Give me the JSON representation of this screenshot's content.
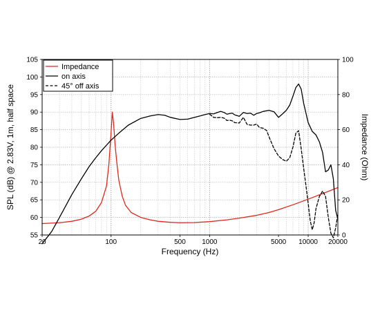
{
  "chart_data": {
    "type": "line",
    "xlabel": "Frequency (Hz)",
    "ylabel": "SPL (dB) @ 2.83V, 1m, half space",
    "y2label": "Impedance (Ohm)",
    "xscale": "log",
    "xlim": [
      20,
      20000
    ],
    "ylim": [
      55,
      105
    ],
    "y2lim": [
      0,
      100
    ],
    "grid": true,
    "legend_position": "top-left",
    "x_tick_labels": [
      "20",
      "100",
      "500",
      "1000",
      "5000",
      "10000",
      "20000"
    ],
    "x_ticks": [
      20,
      100,
      500,
      1000,
      5000,
      10000,
      20000
    ],
    "y_ticks": [
      55,
      60,
      65,
      70,
      75,
      80,
      85,
      90,
      95,
      100,
      105
    ],
    "y_tick_labels": [
      "55",
      "60",
      "65",
      "70",
      "75",
      "80",
      "85",
      "90",
      "95",
      "100",
      "105"
    ],
    "y2_ticks": [
      0,
      20,
      40,
      60,
      80,
      100
    ],
    "y2_tick_labels": [
      "0",
      "20",
      "40",
      "60",
      "80",
      "100"
    ],
    "series": [
      {
        "name": "Impedance",
        "axis": "right",
        "color": "#e0261b",
        "dash": "solid",
        "x": [
          20,
          30,
          40,
          50,
          60,
          70,
          80,
          90,
          95,
          100,
          103,
          106,
          110,
          115,
          120,
          130,
          140,
          160,
          200,
          250,
          300,
          400,
          500,
          700,
          1000,
          1500,
          2000,
          3000,
          4000,
          5000,
          7000,
          10000,
          15000,
          20000
        ],
        "y": [
          6.5,
          7.0,
          7.8,
          9.0,
          10.8,
          13.5,
          18.5,
          28,
          40,
          58,
          70,
          64,
          51,
          40,
          31,
          22,
          17,
          12.8,
          10.0,
          8.6,
          7.8,
          7.2,
          7.0,
          7.1,
          7.6,
          8.6,
          9.6,
          11.2,
          12.8,
          14.4,
          17.2,
          20.4,
          24.2,
          27.0
        ]
      },
      {
        "name": "on axis",
        "axis": "left",
        "color": "#000000",
        "dash": "solid",
        "x": [
          20,
          25,
          30,
          40,
          50,
          60,
          70,
          80,
          100,
          120,
          150,
          200,
          250,
          300,
          350,
          400,
          500,
          600,
          700,
          800,
          900,
          1000,
          1100,
          1200,
          1300,
          1400,
          1500,
          1600,
          1700,
          1800,
          2000,
          2200,
          2400,
          2600,
          2800,
          3000,
          3200,
          3500,
          4000,
          4500,
          5000,
          5500,
          6000,
          6500,
          7000,
          7500,
          8000,
          8500,
          9000,
          10000,
          11000,
          12000,
          13000,
          14000,
          15000,
          16000,
          17000,
          18000,
          19000,
          20000
        ],
        "y": [
          52.5,
          56,
          60,
          66.5,
          71,
          74.5,
          77,
          79,
          82,
          84,
          86.3,
          88.2,
          88.9,
          89.3,
          89.1,
          88.5,
          87.9,
          88,
          88.5,
          88.9,
          89.3,
          89.6,
          89.5,
          89.9,
          90.2,
          89.9,
          89.4,
          89.6,
          89.7,
          89.2,
          88.8,
          89.9,
          89.6,
          89.7,
          89.1,
          89.6,
          89.8,
          90.2,
          90.5,
          90.1,
          88.5,
          89.5,
          90.5,
          92,
          94.5,
          97,
          98,
          96.5,
          92.5,
          87,
          84.5,
          83.5,
          81.5,
          78.5,
          73,
          73.5,
          75,
          71,
          62,
          59.5
        ]
      },
      {
        "name": "45° off axis",
        "axis": "left",
        "color": "#000000",
        "dash": "dashed",
        "x": [
          1000,
          1100,
          1200,
          1300,
          1400,
          1500,
          1600,
          1700,
          1800,
          2000,
          2200,
          2400,
          2600,
          2800,
          3000,
          3200,
          3500,
          3800,
          4000,
          4500,
          5000,
          5500,
          6000,
          6500,
          7000,
          7500,
          8000,
          8500,
          9000,
          9500,
          10000,
          10500,
          11000,
          11500,
          12000,
          13000,
          14000,
          15000,
          16000,
          17000,
          18000,
          19000,
          20000
        ],
        "y": [
          89.4,
          88.5,
          88.4,
          88.5,
          88.3,
          87.6,
          87.7,
          87.5,
          87.0,
          86.9,
          88.5,
          86.5,
          86.3,
          86.3,
          86.6,
          85.6,
          85.4,
          84.7,
          83.0,
          79.6,
          77.5,
          76.5,
          76.0,
          77.0,
          80.0,
          84.0,
          84.7,
          79.5,
          74.0,
          69.0,
          64.0,
          59.0,
          56.5,
          58.5,
          62.5,
          66.0,
          67.5,
          66.0,
          60.0,
          55.5,
          54.2,
          57.0,
          61.0
        ]
      }
    ]
  }
}
